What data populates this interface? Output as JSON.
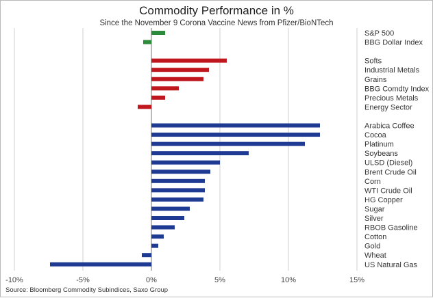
{
  "chart_data": {
    "type": "bar",
    "orientation": "horizontal",
    "title": "Commodity Performance in %",
    "subtitle": "Since the November 9 Corona Vaccine News from Pfizer/BioNTech",
    "source": "Source: Bloomberg Commodity Subindices, Saxo Group",
    "xlim": [
      -10,
      15
    ],
    "x_ticks": [
      {
        "value": -10,
        "label": "-10%"
      },
      {
        "value": -5,
        "label": "-5%"
      },
      {
        "value": 0,
        "label": "0%"
      },
      {
        "value": 5,
        "label": "5%"
      },
      {
        "value": 10,
        "label": "10%"
      },
      {
        "value": 15,
        "label": "15%"
      }
    ],
    "grid": true,
    "colors": {
      "green": "#2e8b3c",
      "red": "#c0161d",
      "blue": "#1f3a93"
    },
    "groups": [
      {
        "color": "green",
        "items": [
          {
            "label": "S&P 500",
            "value": 1.0
          },
          {
            "label": "BBG Dollar Index",
            "value": -0.6
          }
        ]
      },
      {
        "color": "red",
        "items": [
          {
            "label": "Softs",
            "value": 5.5
          },
          {
            "label": "Industrial Metals",
            "value": 4.2
          },
          {
            "label": "Grains",
            "value": 3.8
          },
          {
            "label": "BBG Comdty Index",
            "value": 2.0
          },
          {
            "label": "Precious Metals",
            "value": 1.0
          },
          {
            "label": "Energy Sector",
            "value": -1.0
          }
        ]
      },
      {
        "color": "blue",
        "items": [
          {
            "label": "Arabica Coffee",
            "value": 12.3
          },
          {
            "label": "Cocoa",
            "value": 12.3
          },
          {
            "label": "Platinum",
            "value": 11.2
          },
          {
            "label": "Soybeans",
            "value": 7.1
          },
          {
            "label": "ULSD (Diesel)",
            "value": 5.0
          },
          {
            "label": "Brent Crude Oil",
            "value": 4.3
          },
          {
            "label": "Corn",
            "value": 3.9
          },
          {
            "label": "WTI Crude Oil",
            "value": 3.9
          },
          {
            "label": "HG Copper",
            "value": 3.8
          },
          {
            "label": "Sugar",
            "value": 2.8
          },
          {
            "label": "Silver",
            "value": 2.4
          },
          {
            "label": "RBOB Gasoline",
            "value": 1.7
          },
          {
            "label": "Cotton",
            "value": 0.9
          },
          {
            "label": "Gold",
            "value": 0.5
          },
          {
            "label": "Wheat",
            "value": -0.7
          },
          {
            "label": "US Natural Gas",
            "value": -7.4
          }
        ]
      }
    ]
  }
}
